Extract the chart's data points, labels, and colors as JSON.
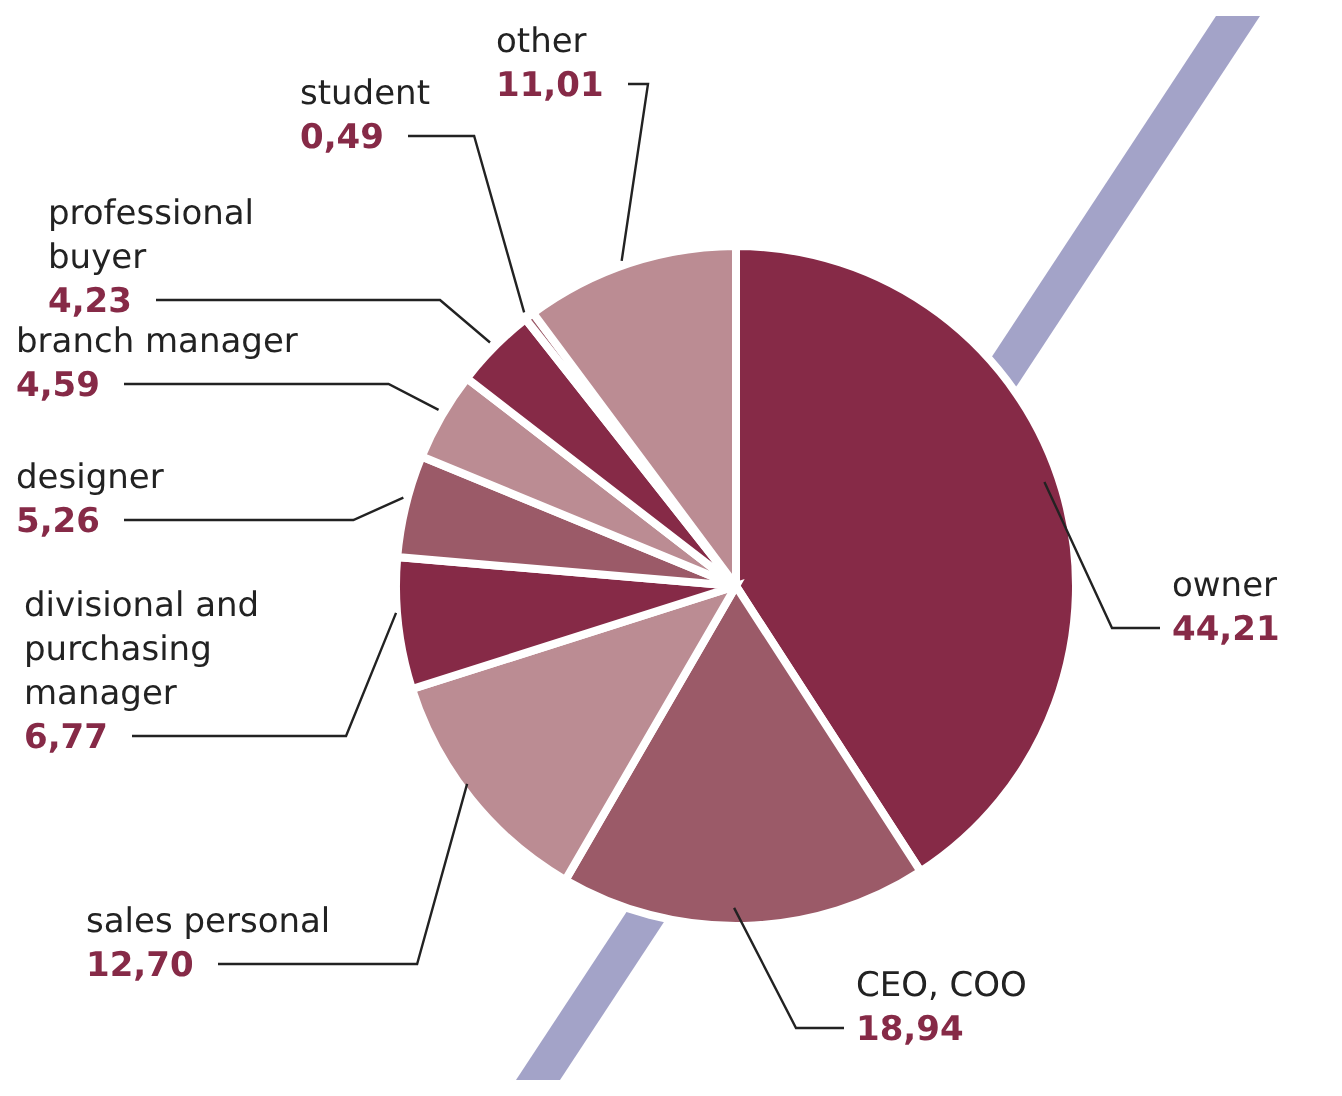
{
  "chart_data": {
    "type": "pie",
    "categories": [
      "owner",
      "CEO, COO",
      "sales personal",
      "divisional and purchasing manager",
      "designer",
      "branch manager",
      "professional buyer",
      "student",
      "other"
    ],
    "values": [
      44.21,
      18.94,
      12.7,
      6.77,
      5.26,
      4.59,
      4.23,
      0.49,
      11.01
    ],
    "value_labels": [
      "44,21",
      "18,94",
      "12,70",
      "6,77",
      "5,26",
      "4,59",
      "4,23",
      "0,49",
      "11,01"
    ],
    "colors": [
      "#862a47",
      "#9b5a68",
      "#bb8c93",
      "#862a47",
      "#9b5a68",
      "#bb8c93",
      "#862a47",
      "#9b5a68",
      "#bb8c93"
    ]
  }
}
